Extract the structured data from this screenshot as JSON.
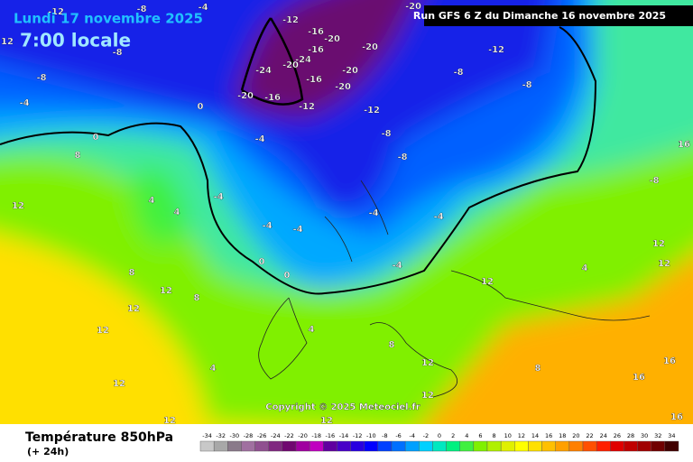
{
  "header": {
    "date": "Lundi 17 novembre 2025",
    "time": "7:00 locale",
    "run": "Run GFS 6 Z du Dimanche 16 novembre 2025"
  },
  "copyright": "Copyright © 2025 Meteociel.fr",
  "footer": {
    "title": "Température 850hPa",
    "subtitle": "(+ 24h)"
  },
  "legend": {
    "values": [
      -34,
      -32,
      -30,
      -28,
      -26,
      -24,
      -22,
      -20,
      -18,
      -16,
      -14,
      -12,
      -10,
      -8,
      -6,
      -4,
      -2,
      0,
      2,
      4,
      6,
      8,
      10,
      12,
      14,
      16,
      18,
      20,
      22,
      24,
      26,
      28,
      30,
      32,
      34
    ],
    "colors": [
      "#c8c8c8",
      "#a8a8a8",
      "#8a7a8a",
      "#a070a0",
      "#905090",
      "#802880",
      "#700870",
      "#a000a0",
      "#c000c0",
      "#6000a0",
      "#4800c8",
      "#2800e0",
      "#0000ff",
      "#0040ff",
      "#0070ff",
      "#00a0ff",
      "#00d0ff",
      "#00e8c0",
      "#00f080",
      "#40f040",
      "#80f000",
      "#b0f000",
      "#e0f000",
      "#ffff00",
      "#ffe000",
      "#ffc000",
      "#ffa000",
      "#ff8000",
      "#ff5000",
      "#ff2000",
      "#e00000",
      "#c00000",
      "#a00000",
      "#700000",
      "#400000"
    ]
  },
  "map_labels": [
    -12,
    -8,
    -4,
    -20,
    -12,
    -16,
    -20,
    -16,
    -20,
    -24,
    -20,
    -24,
    -16,
    -20,
    -20,
    -20,
    -16,
    -12,
    -12,
    -12,
    -8,
    -8,
    -8,
    -8,
    -4,
    -4,
    -4,
    -4,
    -4,
    -4,
    -4,
    0,
    0,
    0,
    0,
    4,
    4,
    4,
    4,
    4,
    8,
    8,
    8,
    8,
    8,
    12,
    12,
    12,
    12,
    12,
    12,
    12,
    12,
    12,
    12,
    12,
    12,
    16,
    16,
    16,
    16,
    12,
    -8,
    -8,
    -4,
    -8
  ]
}
